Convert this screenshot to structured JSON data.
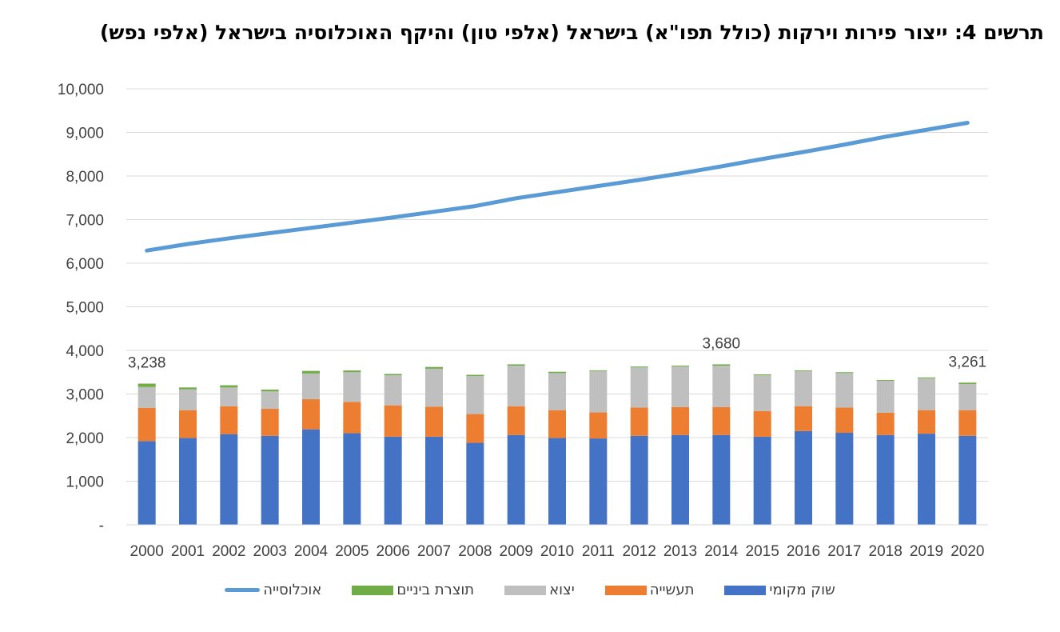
{
  "chart_data": {
    "type": "bar",
    "stacked": true,
    "title": "תרשים 4: ייצור פירות וירקות (כולל תפו\"א) בישראל (אלפי טון) והיקף האוכלוסיה בישראל (אלפי נפש)",
    "xlabel": "",
    "ylabel": "",
    "ylim": [
      0,
      10000
    ],
    "yticks": [
      0,
      1000,
      2000,
      3000,
      4000,
      5000,
      6000,
      7000,
      8000,
      9000,
      10000
    ],
    "ytick_labels": [
      "-",
      "1,000",
      "2,000",
      "3,000",
      "4,000",
      "5,000",
      "6,000",
      "7,000",
      "8,000",
      "9,000",
      "10,000"
    ],
    "grid": true,
    "legend_position": "bottom",
    "categories": [
      "2000",
      "2001",
      "2002",
      "2003",
      "2004",
      "2005",
      "2006",
      "2007",
      "2008",
      "2009",
      "2010",
      "2011",
      "2012",
      "2013",
      "2014",
      "2015",
      "2016",
      "2017",
      "2018",
      "2019",
      "2020"
    ],
    "series": [
      {
        "name": "שוק מקומי",
        "kind": "bar",
        "color": "#4472C4",
        "values": [
          1920,
          1990,
          2080,
          2040,
          2190,
          2100,
          2020,
          2020,
          1880,
          2060,
          1990,
          1980,
          2040,
          2060,
          2060,
          2020,
          2150,
          2110,
          2060,
          2090,
          2040
        ]
      },
      {
        "name": "תעשייה",
        "kind": "bar",
        "color": "#ED7D31",
        "values": [
          760,
          640,
          640,
          620,
          690,
          720,
          720,
          690,
          660,
          660,
          640,
          600,
          650,
          640,
          640,
          590,
          570,
          580,
          510,
          540,
          590
        ]
      },
      {
        "name": "יצוא",
        "kind": "bar",
        "color": "#BFBFBF",
        "values": [
          480,
          480,
          430,
          400,
          590,
          680,
          690,
          870,
          870,
          930,
          850,
          940,
          920,
          930,
          950,
          820,
          800,
          790,
          730,
          730,
          600
        ]
      },
      {
        "name": "תוצרת ביניים",
        "kind": "bar",
        "color": "#70AD47",
        "values": [
          78,
          40,
          50,
          40,
          60,
          40,
          30,
          40,
          30,
          30,
          30,
          20,
          20,
          20,
          30,
          20,
          20,
          20,
          20,
          20,
          31
        ]
      },
      {
        "name": "אוכלוסייה",
        "kind": "line",
        "color": "#5B9BD5",
        "values": [
          6290,
          6440,
          6570,
          6690,
          6810,
          6930,
          7050,
          7180,
          7310,
          7490,
          7630,
          7770,
          7910,
          8060,
          8220,
          8390,
          8550,
          8720,
          8900,
          9060,
          9220
        ]
      }
    ],
    "data_labels": [
      {
        "category": "2000",
        "text": "3,238"
      },
      {
        "category": "2014",
        "text": "3,680"
      },
      {
        "category": "2020",
        "text": "3,261"
      }
    ]
  }
}
